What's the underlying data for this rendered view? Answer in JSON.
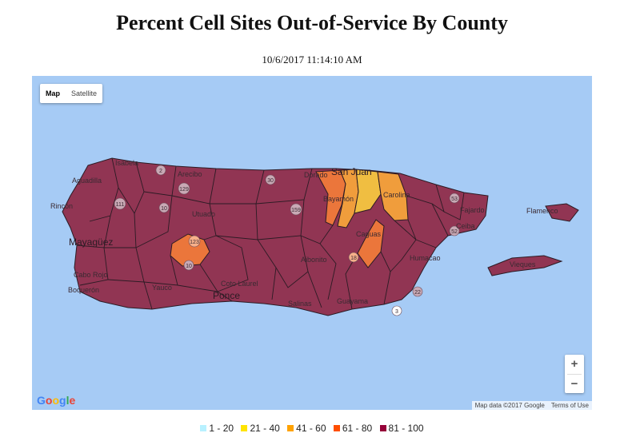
{
  "title": "Percent Cell Sites Out-of-Service By County",
  "timestamp": "10/6/2017 11:14:10 AM",
  "map_controls": {
    "map_label": "Map",
    "satellite_label": "Satellite",
    "selected": "Map",
    "zoom_in_label": "+",
    "zoom_out_label": "−",
    "logo_letters": [
      "G",
      "o",
      "o",
      "g",
      "l",
      "e"
    ],
    "attribution": "Map data ©2017 Google",
    "terms": "Terms of Use"
  },
  "place_labels": {
    "isabela": "Isabela",
    "arecibo": "Arecibo",
    "san_juan": "San Juan",
    "carolina": "Carolina",
    "bayamon": "Bayamón",
    "aguadilla": "Aguadilla",
    "rincon": "Rincón",
    "mayaguez": "Mayagüez",
    "cabo_rojo": "Cabo Rojo",
    "utuado": "Utuado",
    "caguas": "Caguas",
    "ponce": "Ponce",
    "coto_laurel": "Coto Laurel",
    "guayama": "Guayama",
    "humacao": "Humacao",
    "fajardo": "Fajardo",
    "ceiba": "Ceiba",
    "flamenco": "Flamenco",
    "vieques": "Vieques",
    "salinas": "Salinas",
    "aibonito": "Aibonito",
    "yauco": "Yauco",
    "boqueron": "Boquerón",
    "dorado": "Dorado"
  },
  "road_shields": [
    "2",
    "129",
    "10",
    "111",
    "123",
    "159",
    "52",
    "30",
    "53",
    "3",
    "22",
    "18",
    "10"
  ],
  "legend": [
    {
      "label": "1 - 20",
      "color": "#b8f1ff"
    },
    {
      "label": "21 - 40",
      "color": "#ffe400"
    },
    {
      "label": "41 - 60",
      "color": "#ffa200"
    },
    {
      "label": "61 - 80",
      "color": "#ff4e00"
    },
    {
      "label": "81 - 100",
      "color": "#950039"
    }
  ],
  "colors": {
    "water": "#a6cbf5",
    "region_81_100": "#8f2c4a",
    "region_61_80": "#f07a3a",
    "region_41_60": "#f5a33b",
    "region_21_40": "#f6c640",
    "border": "#2b1b24"
  }
}
